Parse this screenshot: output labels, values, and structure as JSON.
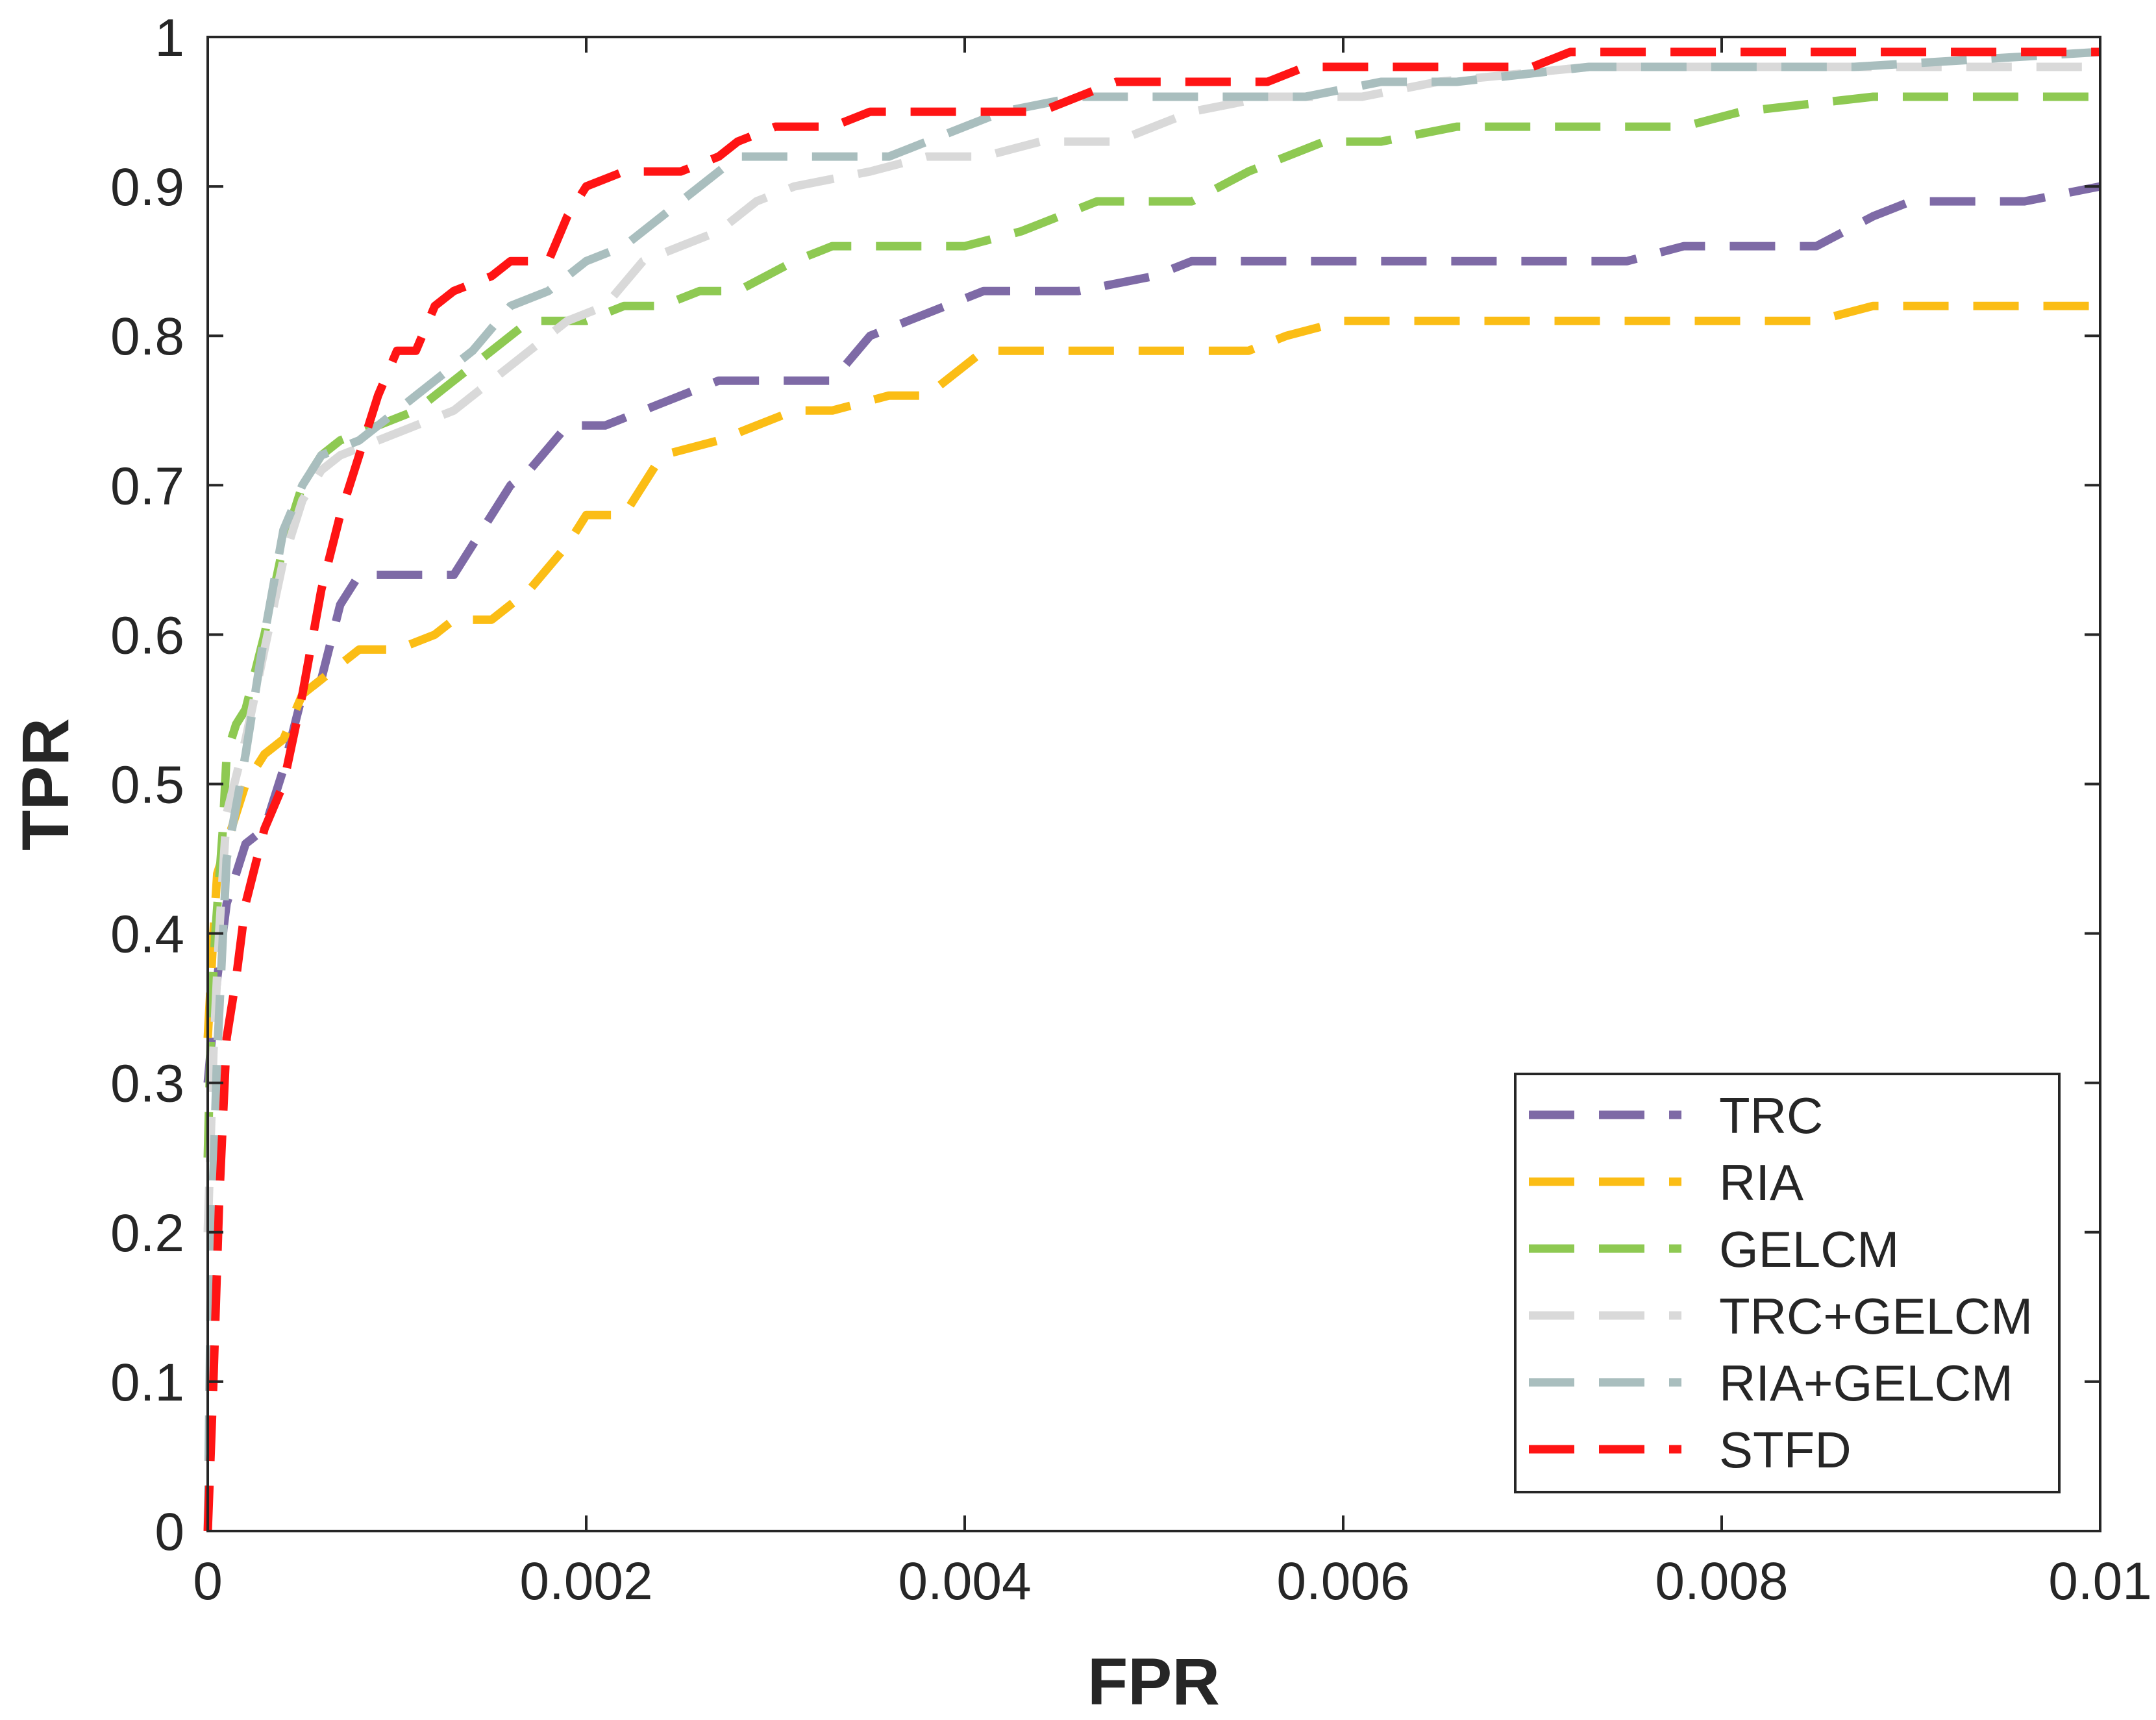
{
  "chart_data": {
    "type": "line",
    "title": "",
    "xlabel": "FPR",
    "ylabel": "TPR",
    "xlim": [
      0,
      0.01
    ],
    "ylim": [
      0,
      1
    ],
    "grid": false,
    "legend_position": "bottom-right",
    "x_ticks": [
      0,
      0.002,
      0.004,
      0.006,
      0.008,
      0.01
    ],
    "x_tick_labels": [
      "0",
      "0.002",
      "0.004",
      "0.006",
      "0.008",
      "0.01"
    ],
    "y_ticks": [
      0,
      0.1,
      0.2,
      0.3,
      0.4,
      0.5,
      0.6,
      0.7,
      0.8,
      0.9,
      1
    ],
    "y_tick_labels": [
      "0",
      "0.1",
      "0.2",
      "0.3",
      "0.4",
      "0.5",
      "0.6",
      "0.7",
      "0.8",
      "0.9",
      "1"
    ],
    "series": [
      {
        "name": "TRC",
        "color": "#7e6aa6",
        "points": [
          [
            0,
            0.3
          ],
          [
            5e-05,
            0.37
          ],
          [
            0.0001,
            0.42
          ],
          [
            0.0002,
            0.46
          ],
          [
            0.0003,
            0.47
          ],
          [
            0.0004,
            0.51
          ],
          [
            0.0005,
            0.56
          ],
          [
            0.0006,
            0.57
          ],
          [
            0.0007,
            0.62
          ],
          [
            0.0008,
            0.64
          ],
          [
            0.0013,
            0.64
          ],
          [
            0.0014,
            0.66
          ],
          [
            0.0016,
            0.7
          ],
          [
            0.0017,
            0.71
          ],
          [
            0.0019,
            0.74
          ],
          [
            0.0021,
            0.74
          ],
          [
            0.0023,
            0.75
          ],
          [
            0.0027,
            0.77
          ],
          [
            0.0033,
            0.77
          ],
          [
            0.0035,
            0.8
          ],
          [
            0.0039,
            0.82
          ],
          [
            0.0041,
            0.83
          ],
          [
            0.0046,
            0.83
          ],
          [
            0.005,
            0.84
          ],
          [
            0.0052,
            0.85
          ],
          [
            0.0075,
            0.85
          ],
          [
            0.0078,
            0.86
          ],
          [
            0.0085,
            0.86
          ],
          [
            0.0088,
            0.88
          ],
          [
            0.009,
            0.89
          ],
          [
            0.0096,
            0.89
          ],
          [
            0.01,
            0.9
          ]
        ]
      },
      {
        "name": "RIA",
        "color": "#fbbd15",
        "points": [
          [
            0,
            0.33
          ],
          [
            3e-05,
            0.4
          ],
          [
            5e-05,
            0.44
          ],
          [
            0.0001,
            0.46
          ],
          [
            0.0002,
            0.5
          ],
          [
            0.0003,
            0.52
          ],
          [
            0.0004,
            0.53
          ],
          [
            0.0005,
            0.56
          ],
          [
            0.0006,
            0.57
          ],
          [
            0.0007,
            0.58
          ],
          [
            0.0008,
            0.59
          ],
          [
            0.001,
            0.59
          ],
          [
            0.0012,
            0.6
          ],
          [
            0.0013,
            0.61
          ],
          [
            0.0015,
            0.61
          ],
          [
            0.0017,
            0.63
          ],
          [
            0.0019,
            0.66
          ],
          [
            0.002,
            0.68
          ],
          [
            0.0022,
            0.68
          ],
          [
            0.0024,
            0.72
          ],
          [
            0.0027,
            0.73
          ],
          [
            0.0029,
            0.74
          ],
          [
            0.0031,
            0.75
          ],
          [
            0.0033,
            0.75
          ],
          [
            0.0036,
            0.76
          ],
          [
            0.0038,
            0.76
          ],
          [
            0.0041,
            0.79
          ],
          [
            0.0046,
            0.79
          ],
          [
            0.0055,
            0.79
          ],
          [
            0.0057,
            0.8
          ],
          [
            0.006,
            0.81
          ],
          [
            0.0085,
            0.81
          ],
          [
            0.0088,
            0.82
          ],
          [
            0.01,
            0.82
          ]
        ]
      },
      {
        "name": "GELCM",
        "color": "#8ec952",
        "points": [
          [
            0,
            0.25
          ],
          [
            2e-05,
            0.35
          ],
          [
            4e-05,
            0.4
          ],
          [
            8e-05,
            0.47
          ],
          [
            0.0001,
            0.52
          ],
          [
            0.00015,
            0.54
          ],
          [
            0.0002,
            0.55
          ],
          [
            0.0003,
            0.6
          ],
          [
            0.0004,
            0.66
          ],
          [
            0.0005,
            0.7
          ],
          [
            0.0006,
            0.72
          ],
          [
            0.0007,
            0.73
          ],
          [
            0.0009,
            0.74
          ],
          [
            0.0011,
            0.75
          ],
          [
            0.0013,
            0.77
          ],
          [
            0.0015,
            0.79
          ],
          [
            0.0017,
            0.81
          ],
          [
            0.002,
            0.81
          ],
          [
            0.0022,
            0.82
          ],
          [
            0.0024,
            0.82
          ],
          [
            0.0026,
            0.83
          ],
          [
            0.0028,
            0.83
          ],
          [
            0.0031,
            0.85
          ],
          [
            0.0033,
            0.86
          ],
          [
            0.0037,
            0.86
          ],
          [
            0.004,
            0.86
          ],
          [
            0.0043,
            0.87
          ],
          [
            0.0047,
            0.89
          ],
          [
            0.005,
            0.89
          ],
          [
            0.0052,
            0.89
          ],
          [
            0.0055,
            0.91
          ],
          [
            0.0059,
            0.93
          ],
          [
            0.0062,
            0.93
          ],
          [
            0.0066,
            0.94
          ],
          [
            0.0075,
            0.94
          ],
          [
            0.0078,
            0.94
          ],
          [
            0.0081,
            0.95
          ],
          [
            0.0088,
            0.96
          ],
          [
            0.01,
            0.96
          ]
        ]
      },
      {
        "name": "TRC+GELCM",
        "color": "#d9d9d9",
        "points": [
          [
            0,
            0.2
          ],
          [
            3e-05,
            0.32
          ],
          [
            6e-05,
            0.4
          ],
          [
            0.0001,
            0.48
          ],
          [
            0.0002,
            0.53
          ],
          [
            0.0003,
            0.59
          ],
          [
            0.0004,
            0.65
          ],
          [
            0.0005,
            0.69
          ],
          [
            0.0006,
            0.71
          ],
          [
            0.0007,
            0.72
          ],
          [
            0.0009,
            0.73
          ],
          [
            0.0011,
            0.74
          ],
          [
            0.0013,
            0.75
          ],
          [
            0.0015,
            0.77
          ],
          [
            0.0017,
            0.79
          ],
          [
            0.0019,
            0.81
          ],
          [
            0.0021,
            0.82
          ],
          [
            0.0023,
            0.85
          ],
          [
            0.0025,
            0.86
          ],
          [
            0.0027,
            0.87
          ],
          [
            0.0029,
            0.89
          ],
          [
            0.0031,
            0.9
          ],
          [
            0.0035,
            0.91
          ],
          [
            0.0038,
            0.92
          ],
          [
            0.0041,
            0.92
          ],
          [
            0.0044,
            0.93
          ],
          [
            0.0048,
            0.93
          ],
          [
            0.0052,
            0.95
          ],
          [
            0.0056,
            0.96
          ],
          [
            0.0061,
            0.96
          ],
          [
            0.0065,
            0.97
          ],
          [
            0.0073,
            0.98
          ],
          [
            0.0085,
            0.98
          ],
          [
            0.01,
            0.98
          ]
        ]
      },
      {
        "name": "RIA+GELCM",
        "color": "#a9bebe",
        "points": [
          [
            0,
            0.0
          ],
          [
            2e-05,
            0.2
          ],
          [
            5e-05,
            0.32
          ],
          [
            0.0001,
            0.45
          ],
          [
            0.0002,
            0.52
          ],
          [
            0.0003,
            0.6
          ],
          [
            0.0004,
            0.67
          ],
          [
            0.0005,
            0.7
          ],
          [
            0.0006,
            0.72
          ],
          [
            0.0008,
            0.73
          ],
          [
            0.001,
            0.75
          ],
          [
            0.0012,
            0.77
          ],
          [
            0.0014,
            0.79
          ],
          [
            0.0016,
            0.82
          ],
          [
            0.0018,
            0.83
          ],
          [
            0.002,
            0.85
          ],
          [
            0.0022,
            0.86
          ],
          [
            0.0024,
            0.88
          ],
          [
            0.0026,
            0.9
          ],
          [
            0.0028,
            0.92
          ],
          [
            0.0032,
            0.92
          ],
          [
            0.0036,
            0.92
          ],
          [
            0.0038,
            0.93
          ],
          [
            0.004,
            0.94
          ],
          [
            0.0042,
            0.95
          ],
          [
            0.0046,
            0.96
          ],
          [
            0.0052,
            0.96
          ],
          [
            0.0055,
            0.96
          ],
          [
            0.0058,
            0.96
          ],
          [
            0.0062,
            0.97
          ],
          [
            0.0066,
            0.97
          ],
          [
            0.0073,
            0.98
          ],
          [
            0.0087,
            0.98
          ],
          [
            0.01,
            0.99
          ]
        ]
      },
      {
        "name": "STFD",
        "color": "#ff1414",
        "points": [
          [
            0,
            0.0
          ],
          [
            3e-05,
            0.1
          ],
          [
            6e-05,
            0.22
          ],
          [
            0.0001,
            0.33
          ],
          [
            0.00015,
            0.37
          ],
          [
            0.0002,
            0.42
          ],
          [
            0.0003,
            0.47
          ],
          [
            0.0004,
            0.5
          ],
          [
            0.0005,
            0.56
          ],
          [
            0.0006,
            0.63
          ],
          [
            0.0007,
            0.68
          ],
          [
            0.0008,
            0.72
          ],
          [
            0.0009,
            0.76
          ],
          [
            0.001,
            0.79
          ],
          [
            0.0011,
            0.79
          ],
          [
            0.0012,
            0.82
          ],
          [
            0.0013,
            0.83
          ],
          [
            0.0015,
            0.84
          ],
          [
            0.0016,
            0.85
          ],
          [
            0.0018,
            0.85
          ],
          [
            0.0019,
            0.88
          ],
          [
            0.002,
            0.9
          ],
          [
            0.0022,
            0.91
          ],
          [
            0.0025,
            0.91
          ],
          [
            0.0027,
            0.92
          ],
          [
            0.0028,
            0.93
          ],
          [
            0.003,
            0.94
          ],
          [
            0.0033,
            0.94
          ],
          [
            0.0035,
            0.95
          ],
          [
            0.0044,
            0.95
          ],
          [
            0.0046,
            0.96
          ],
          [
            0.0048,
            0.97
          ],
          [
            0.0056,
            0.97
          ],
          [
            0.0058,
            0.98
          ],
          [
            0.007,
            0.98
          ],
          [
            0.0072,
            0.99
          ],
          [
            0.01,
            0.99
          ]
        ]
      }
    ]
  }
}
